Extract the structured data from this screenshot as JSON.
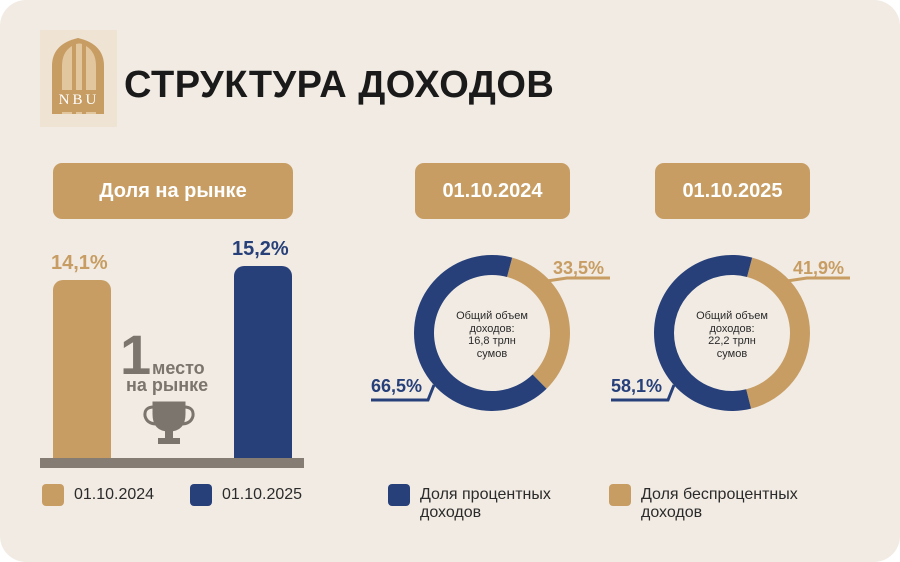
{
  "title": "СТРУКТУРА ДОХОДОВ",
  "logo": {
    "text": "NBU"
  },
  "colors": {
    "gold": "#c79d63",
    "navy": "#27407a",
    "gray": "#857c73",
    "text": "#2b2b2b"
  },
  "market_share": {
    "pill_label": "Доля на рынке",
    "rank_number": "1",
    "rank_word": "место",
    "rank_sub": "на рынке",
    "trophy_icon": "trophy-icon"
  },
  "legend_bars": [
    {
      "label": "01.10.2024",
      "color": "#c79d63"
    },
    {
      "label": "01.10.2025",
      "color": "#27407a"
    }
  ],
  "legend_donuts": [
    {
      "label_line1": "Доля процентных",
      "label_line2": "доходов",
      "color": "#27407a"
    },
    {
      "label_line1": "Доля беспроцентных",
      "label_line2": "доходов",
      "color": "#c79d63"
    }
  ],
  "donuts": [
    {
      "date_label": "01.10.2024",
      "center_text": "Общий объем\nдоходов:\n16,8 трлн\nсумов"
    },
    {
      "date_label": "01.10.2025",
      "center_text": "Общий объем\nдоходов:\n22,2 трлн\nсумов"
    }
  ],
  "chart_data": [
    {
      "type": "bar",
      "title": "Доля на рынке",
      "categories": [
        "01.10.2024",
        "01.10.2025"
      ],
      "values": [
        14.1,
        15.2
      ],
      "value_labels": [
        "14,1%",
        "15,2%"
      ],
      "colors": [
        "#c79d63",
        "#27407a"
      ],
      "ylim": [
        0,
        15.2
      ],
      "grid": false
    },
    {
      "type": "pie",
      "title": "01.10.2024",
      "slices": [
        {
          "name": "Доля беспроцентных доходов",
          "value": 33.5,
          "label": "33,5%",
          "color": "#c79d63"
        },
        {
          "name": "Доля процентных доходов",
          "value": 66.5,
          "label": "66,5%",
          "color": "#27407a"
        }
      ]
    },
    {
      "type": "pie",
      "title": "01.10.2025",
      "slices": [
        {
          "name": "Доля беспроцентных доходов",
          "value": 41.9,
          "label": "41,9%",
          "color": "#c79d63"
        },
        {
          "name": "Доля процентных доходов",
          "value": 58.1,
          "label": "58,1%",
          "color": "#27407a"
        }
      ]
    }
  ]
}
